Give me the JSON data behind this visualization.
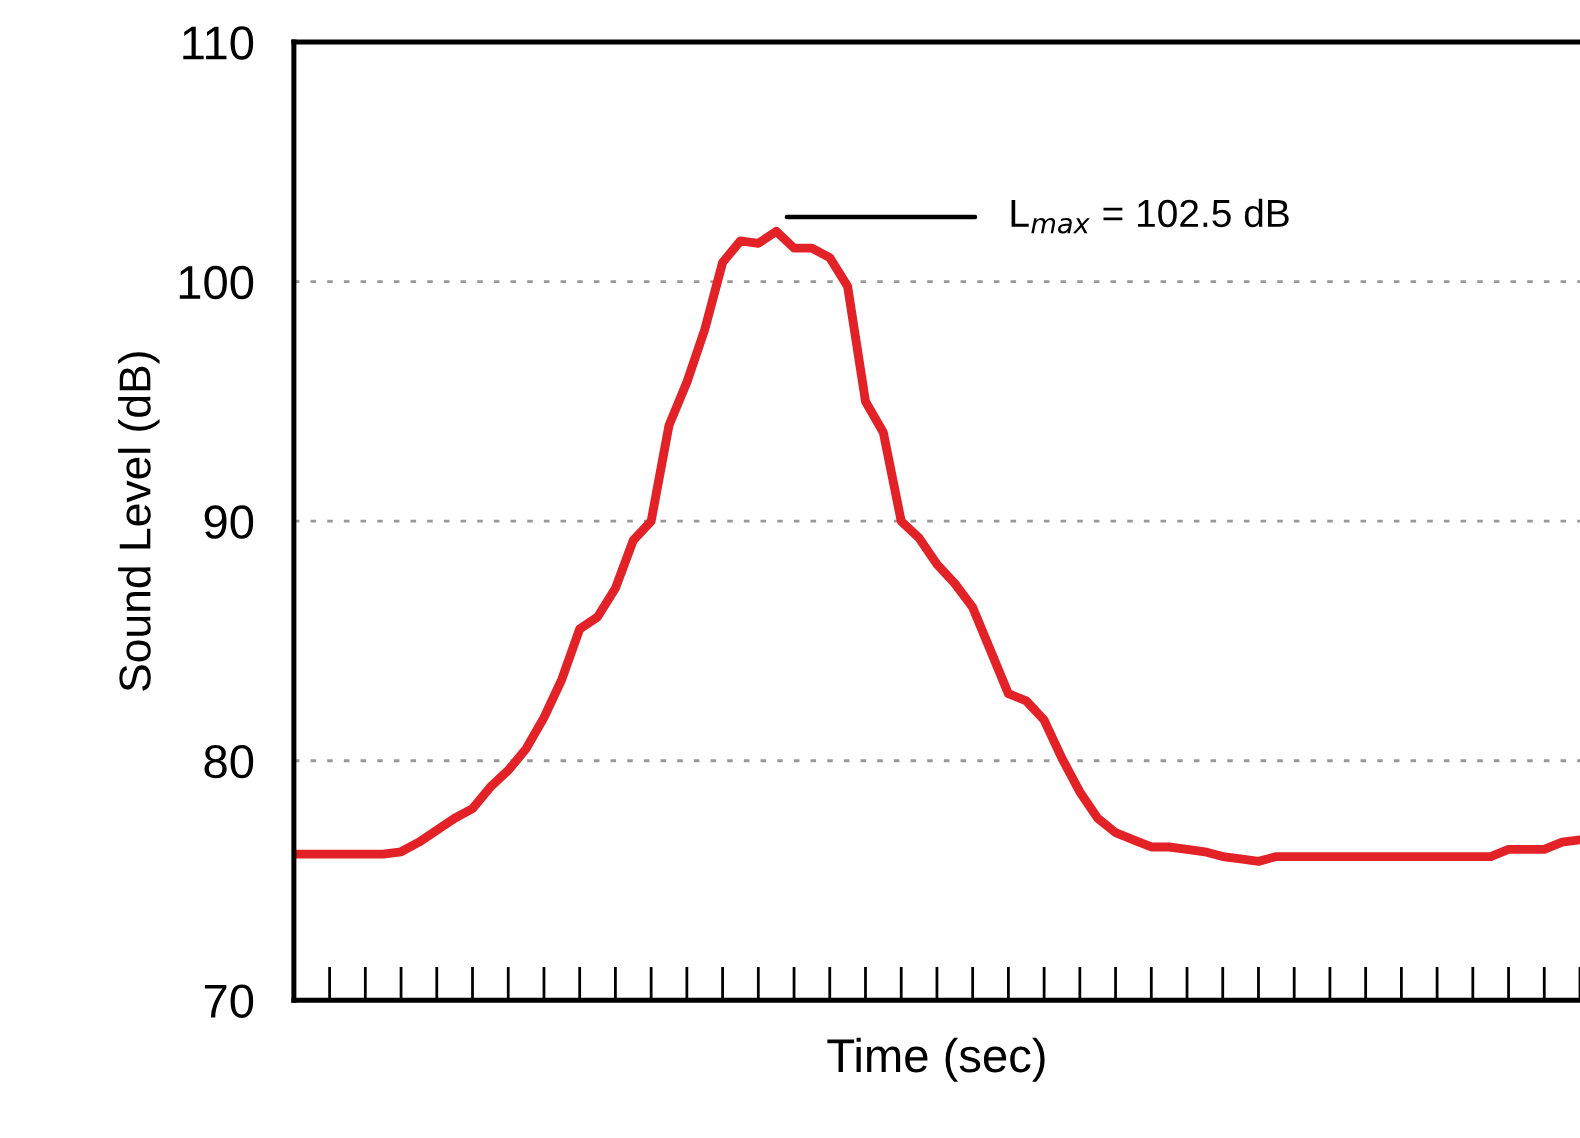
{
  "chart_data": {
    "type": "line",
    "xlabel": "Time (sec)",
    "ylabel": "Sound Level (dB)",
    "categories": [
      null,
      null,
      null,
      null,
      null,
      null,
      null,
      null,
      null,
      null,
      null,
      null,
      null,
      null,
      null,
      null,
      null,
      null,
      null,
      null,
      null,
      null,
      null,
      null,
      null,
      null,
      null,
      null,
      null,
      null,
      null,
      null,
      null,
      null,
      null,
      null,
      null,
      null,
      null,
      null,
      null,
      null,
      null,
      null,
      null,
      null,
      null,
      null,
      null,
      null,
      null,
      null,
      null,
      null,
      null,
      null,
      null,
      null,
      null,
      null,
      null,
      null,
      null,
      null,
      null,
      null,
      null,
      null,
      null,
      null,
      null,
      null,
      null
    ],
    "series": [
      {
        "color": "#e32227",
        "values": [
          76.1,
          76.1,
          76.1,
          76.1,
          76.1,
          76.1,
          76.2,
          76.6,
          77.1,
          77.6,
          78.0,
          78.9,
          79.6,
          80.5,
          81.8,
          83.4,
          85.5,
          86.0,
          87.2,
          89.2,
          90.0,
          94.0,
          95.8,
          98.0,
          100.8,
          101.7,
          101.6,
          102.1,
          101.4,
          101.4,
          101.0,
          99.8,
          95.0,
          93.7,
          90.0,
          89.3,
          88.2,
          87.4,
          86.4,
          84.6,
          82.8,
          82.5,
          81.7,
          80.1,
          78.7,
          77.6,
          77.0,
          76.7,
          76.4,
          76.4,
          76.3,
          76.2,
          76.0,
          75.9,
          75.8,
          76.0,
          76.0,
          76.0,
          76.0,
          76.0,
          76.0,
          76.0,
          76.0,
          76.0,
          76.0,
          76.0,
          76.0,
          76.0,
          76.3,
          76.3,
          76.3,
          76.6,
          76.7
        ]
      }
    ],
    "ylim": [
      70,
      110
    ],
    "yticks": [
      70,
      80,
      90,
      100,
      110
    ],
    "tick_labels": "y",
    "grid": "y",
    "marker": "none",
    "line_style": "solid",
    "annotations": [
      "L$_{max}$ = 102.5 dB"
    ]
  }
}
